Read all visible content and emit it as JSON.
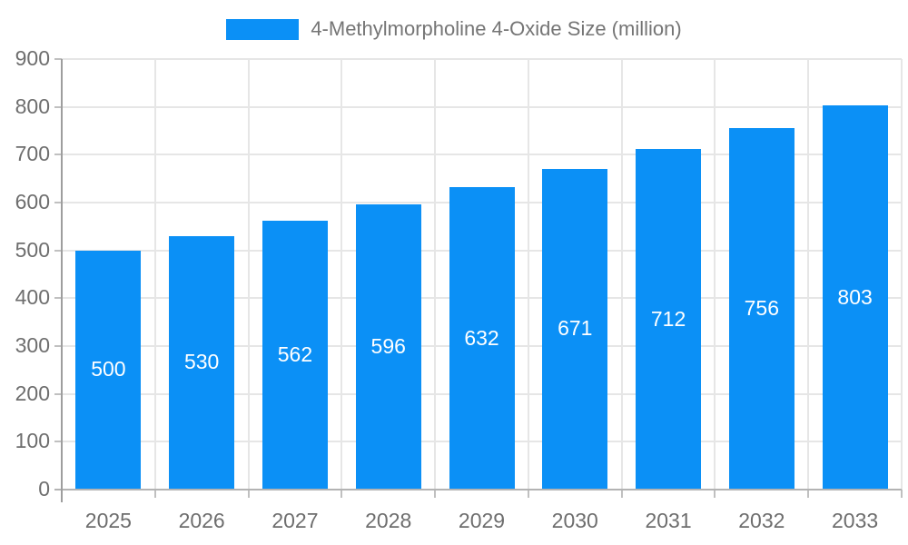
{
  "chart_data": {
    "type": "bar",
    "title": "",
    "legend": {
      "position": "top",
      "label": "4-Methylmorpholine 4-Oxide Size (million)"
    },
    "categories": [
      "2025",
      "2026",
      "2027",
      "2028",
      "2029",
      "2030",
      "2031",
      "2032",
      "2033"
    ],
    "series": [
      {
        "name": "4-Methylmorpholine 4-Oxide Size (million)",
        "values": [
          500,
          530,
          562,
          596,
          632,
          671,
          712,
          756,
          803
        ]
      }
    ],
    "xlabel": "",
    "ylabel": "",
    "ylim": [
      0,
      900
    ],
    "ytick_step": 100,
    "ytick_labels": [
      "0",
      "100",
      "200",
      "300",
      "400",
      "500",
      "600",
      "700",
      "800",
      "900"
    ],
    "grid": true,
    "value_labels_shown": true,
    "colors": {
      "bar": "#0b90f6",
      "bar_value_text": "#ffffff",
      "axis_text": "#6e6e6e",
      "legend_text": "#757575",
      "gridline": "#e6e6e6",
      "x_axis_line": "#b3b3b3",
      "y_axis_line": "#9e9e9e",
      "tick_mark": "#c0c0c0",
      "background": "#ffffff"
    }
  }
}
